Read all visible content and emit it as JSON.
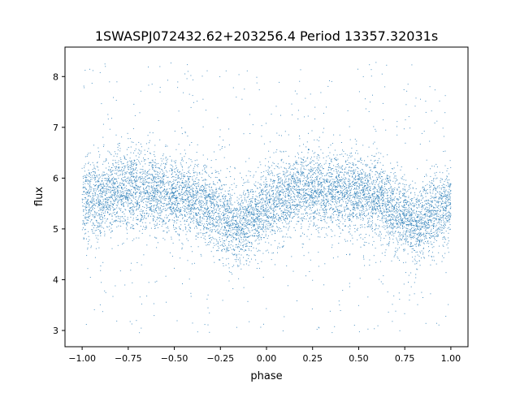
{
  "chart_data": {
    "type": "scatter",
    "title": "1SWASPJ072432.62+203256.4 Period 13357.32031s",
    "xlabel": "phase",
    "ylabel": "flux",
    "xlim": [
      -1.093,
      1.093
    ],
    "ylim": [
      2.68,
      8.58
    ],
    "xticks": [
      -1.0,
      -0.75,
      -0.5,
      -0.25,
      0.0,
      0.25,
      0.5,
      0.75,
      1.0
    ],
    "xtick_labels": [
      "−1.00",
      "−0.75",
      "−0.50",
      "−0.25",
      "0.00",
      "0.25",
      "0.50",
      "0.75",
      "1.00"
    ],
    "yticks": [
      3,
      4,
      5,
      6,
      7,
      8
    ],
    "ytick_labels": [
      "3",
      "4",
      "5",
      "6",
      "7",
      "8"
    ],
    "grid": false,
    "legend": "none",
    "marker_color": "#1f77b4",
    "phase_trend": {
      "phase": [
        -1.0,
        -0.8,
        -0.55,
        -0.35,
        -0.15,
        0.0,
        0.2,
        0.4,
        0.6,
        0.8,
        1.0
      ],
      "mean_flux": [
        5.5,
        5.8,
        5.75,
        5.5,
        5.05,
        5.4,
        5.8,
        5.75,
        5.6,
        5.1,
        5.5
      ]
    },
    "flux_scatter_range": [
      2.95,
      8.3
    ]
  }
}
